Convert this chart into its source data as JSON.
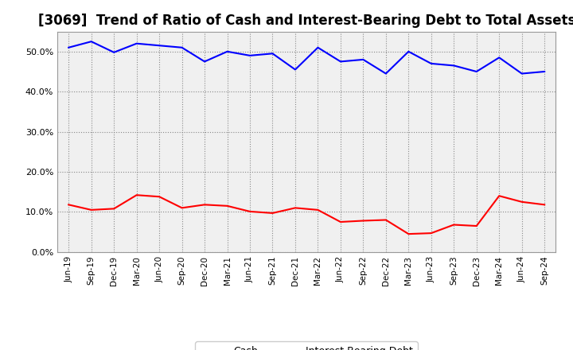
{
  "title": "[3069]  Trend of Ratio of Cash and Interest-Bearing Debt to Total Assets",
  "x_labels": [
    "Jun-19",
    "Sep-19",
    "Dec-19",
    "Mar-20",
    "Jun-20",
    "Sep-20",
    "Dec-20",
    "Mar-21",
    "Jun-21",
    "Sep-21",
    "Dec-21",
    "Mar-22",
    "Jun-22",
    "Sep-22",
    "Dec-22",
    "Mar-23",
    "Jun-23",
    "Sep-23",
    "Dec-23",
    "Mar-24",
    "Jun-24",
    "Sep-24"
  ],
  "cash": [
    11.8,
    10.5,
    10.8,
    14.2,
    13.8,
    11.0,
    11.8,
    11.5,
    10.1,
    9.7,
    11.0,
    10.5,
    7.5,
    7.8,
    8.0,
    4.5,
    4.7,
    6.8,
    6.5,
    14.0,
    12.5,
    11.8
  ],
  "interest_bearing_debt": [
    51.0,
    52.5,
    49.8,
    52.0,
    51.5,
    51.0,
    47.5,
    50.0,
    49.0,
    49.5,
    45.5,
    51.0,
    47.5,
    48.0,
    44.5,
    50.0,
    47.0,
    46.5,
    45.0,
    48.5,
    44.5,
    45.0
  ],
  "cash_color": "#ff0000",
  "debt_color": "#0000ff",
  "background_color": "#ffffff",
  "plot_background": "#f0f0f0",
  "grid_color": "#888888",
  "ylim": [
    0,
    55
  ],
  "yticks": [
    0.0,
    10.0,
    20.0,
    30.0,
    40.0,
    50.0
  ],
  "title_fontsize": 12,
  "legend_labels": [
    "Cash",
    "Interest-Bearing Debt"
  ]
}
